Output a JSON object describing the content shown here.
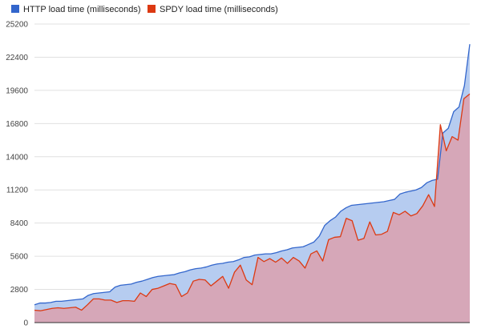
{
  "chart_data": {
    "type": "area",
    "title": "",
    "xlabel": "",
    "ylabel": "",
    "ylim": [
      0,
      25200
    ],
    "yticks": [
      0,
      2800,
      5600,
      8400,
      11200,
      14000,
      16800,
      19600,
      22400,
      25200
    ],
    "grid": true,
    "legend_position": "top-left",
    "series": [
      {
        "name": "HTTP load time (milliseconds)",
        "color": "#3366cc",
        "fill": "#b6ccf0",
        "values": [
          1500,
          1650,
          1650,
          1700,
          1800,
          1800,
          1850,
          1900,
          1950,
          2000,
          2300,
          2450,
          2500,
          2550,
          2600,
          3000,
          3150,
          3200,
          3250,
          3400,
          3500,
          3650,
          3800,
          3900,
          3950,
          4000,
          4050,
          4200,
          4300,
          4450,
          4550,
          4600,
          4700,
          4850,
          4950,
          5000,
          5100,
          5150,
          5300,
          5500,
          5550,
          5700,
          5750,
          5800,
          5800,
          5900,
          6050,
          6150,
          6300,
          6350,
          6400,
          6600,
          6800,
          7300,
          8200,
          8600,
          8900,
          9400,
          9700,
          9900,
          9950,
          10000,
          10050,
          10100,
          10150,
          10200,
          10300,
          10400,
          10850,
          11000,
          11100,
          11200,
          11400,
          11800,
          12000,
          12100,
          16000,
          16400,
          17800,
          18200,
          20000,
          23500
        ]
      },
      {
        "name": "SPDY load time (milliseconds)",
        "color": "#dc3912",
        "fill": "#d8a4b4",
        "values": [
          1050,
          1000,
          1100,
          1200,
          1250,
          1200,
          1250,
          1300,
          1050,
          1500,
          2000,
          2000,
          1900,
          1900,
          1700,
          1850,
          1850,
          1800,
          2500,
          2200,
          2800,
          2900,
          3100,
          3300,
          3200,
          2200,
          2500,
          3500,
          3650,
          3600,
          3100,
          3500,
          3900,
          2900,
          4250,
          4850,
          3600,
          3200,
          5500,
          5150,
          5400,
          5100,
          5450,
          5000,
          5500,
          5200,
          4600,
          5800,
          6050,
          5200,
          7000,
          7200,
          7250,
          8800,
          8600,
          6950,
          7100,
          8500,
          7400,
          7450,
          7700,
          9300,
          9100,
          9400,
          9000,
          9200,
          9850,
          10800,
          9800,
          16700,
          14500,
          15700,
          15400,
          18900,
          19300
        ]
      }
    ]
  },
  "legend": [
    {
      "label": "HTTP load time (milliseconds)",
      "color": "#3366cc"
    },
    {
      "label": "SPDY load time (milliseconds)",
      "color": "#dc3912"
    }
  ],
  "colors": {
    "grid": "#e0e0e0",
    "axis": "#333333"
  }
}
